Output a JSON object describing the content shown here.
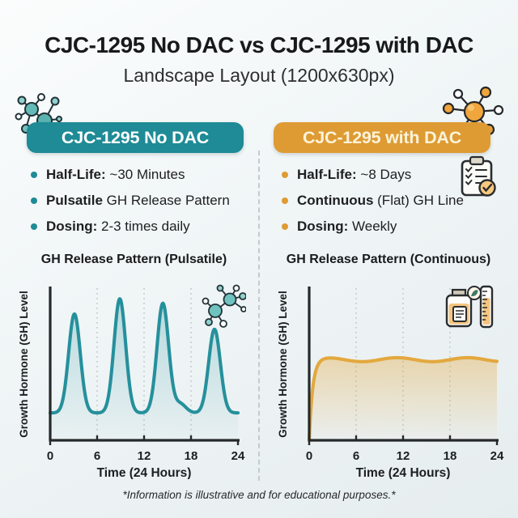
{
  "page": {
    "title": "CJC-1295 No DAC vs CJC-1295 with DAC",
    "subtitle": "Landscape Layout (1200x630px)",
    "footer": "*Information is illustrative and for educational purposes.*"
  },
  "colors": {
    "teal": "#1e8b96",
    "orange": "#de9b33",
    "teal_curve": "#25909c",
    "orange_curve": "#e3a83e",
    "axis": "#26292b",
    "grid": "#b9c4c8",
    "text": "#1d1f20"
  },
  "icons": {
    "top_left": "teal-molecule-icon",
    "top_right": "orange-molecule-icon",
    "right_list": "clipboard-check-icon",
    "left_chart": "teal-molecule-icon",
    "right_chart": "medicine-vial-and-cylinder-icon"
  },
  "left": {
    "header": "CJC-1295 No DAC",
    "bullets": [
      {
        "bold": "Half-Life:",
        "rest": " ~30 Minutes"
      },
      {
        "bold": "Pulsatile",
        "rest": " GH Release Pattern"
      },
      {
        "bold": "Dosing:",
        "rest": " 2-3 times daily"
      }
    ]
  },
  "right": {
    "header": "CJC-1295 with DAC",
    "bullets": [
      {
        "bold": "Half-Life:",
        "rest": " ~8 Days"
      },
      {
        "bold": "Continuous",
        "rest": " (Flat) GH Line"
      },
      {
        "bold": "Dosing:",
        "rest": " Weekly"
      }
    ]
  },
  "chart_data": [
    {
      "type": "area",
      "title": "GH Release Pattern (Pulsatile)",
      "xlabel": "Time (24 Hours)",
      "ylabel": "Growth Hormone (GH) Level",
      "x_ticks": [
        0,
        6,
        12,
        18,
        24
      ],
      "xlim": [
        0,
        24
      ],
      "ylim": [
        0,
        1
      ],
      "y_ticks": [],
      "grid": "vertical-dotted",
      "legend": false,
      "color": "#25909c",
      "fill_opacity": 0.28,
      "curve": {
        "kind": "pulses",
        "baseline": 0.18,
        "peak_width_hours": 1.05,
        "peaks": [
          {
            "hour": 3.1,
            "amplitude": 0.65
          },
          {
            "hour": 8.9,
            "amplitude": 0.75
          },
          {
            "hour": 14.4,
            "amplitude": 0.72
          },
          {
            "hour": 16.6,
            "amplitude": 0.06
          },
          {
            "hour": 21.0,
            "amplitude": 0.55
          }
        ]
      },
      "hourly_values": [
        0.18,
        0.19,
        0.4,
        0.83,
        0.49,
        0.21,
        0.18,
        0.21,
        0.54,
        0.93,
        0.43,
        0.19,
        0.18,
        0.3,
        0.8,
        0.7,
        0.29,
        0.24,
        0.19,
        0.2,
        0.4,
        0.73,
        0.4,
        0.2,
        0.18
      ]
    },
    {
      "type": "area",
      "title": "GH Release Pattern (Continuous)",
      "xlabel": "Time (24 Hours)",
      "ylabel": "Growth Hormone (GH) Level",
      "x_ticks": [
        0,
        6,
        12,
        18,
        24
      ],
      "xlim": [
        0,
        24
      ],
      "ylim": [
        0,
        1
      ],
      "y_ticks": [],
      "grid": "vertical-dotted",
      "legend": false,
      "color": "#e3a83e",
      "fill_opacity": 0.38,
      "curve": {
        "kind": "saturating",
        "plateau": 0.53,
        "rise_tau_hours": 0.45,
        "wiggle": {
          "amplitude": 0.013,
          "period_hours": 9
        }
      },
      "hourly_values": [
        0,
        0.48,
        0.54,
        0.54,
        0.53,
        0.53,
        0.52,
        0.52,
        0.52,
        0.53,
        0.54,
        0.54,
        0.54,
        0.53,
        0.53,
        0.52,
        0.52,
        0.52,
        0.53,
        0.54,
        0.54,
        0.54,
        0.53,
        0.53,
        0.52
      ]
    }
  ]
}
